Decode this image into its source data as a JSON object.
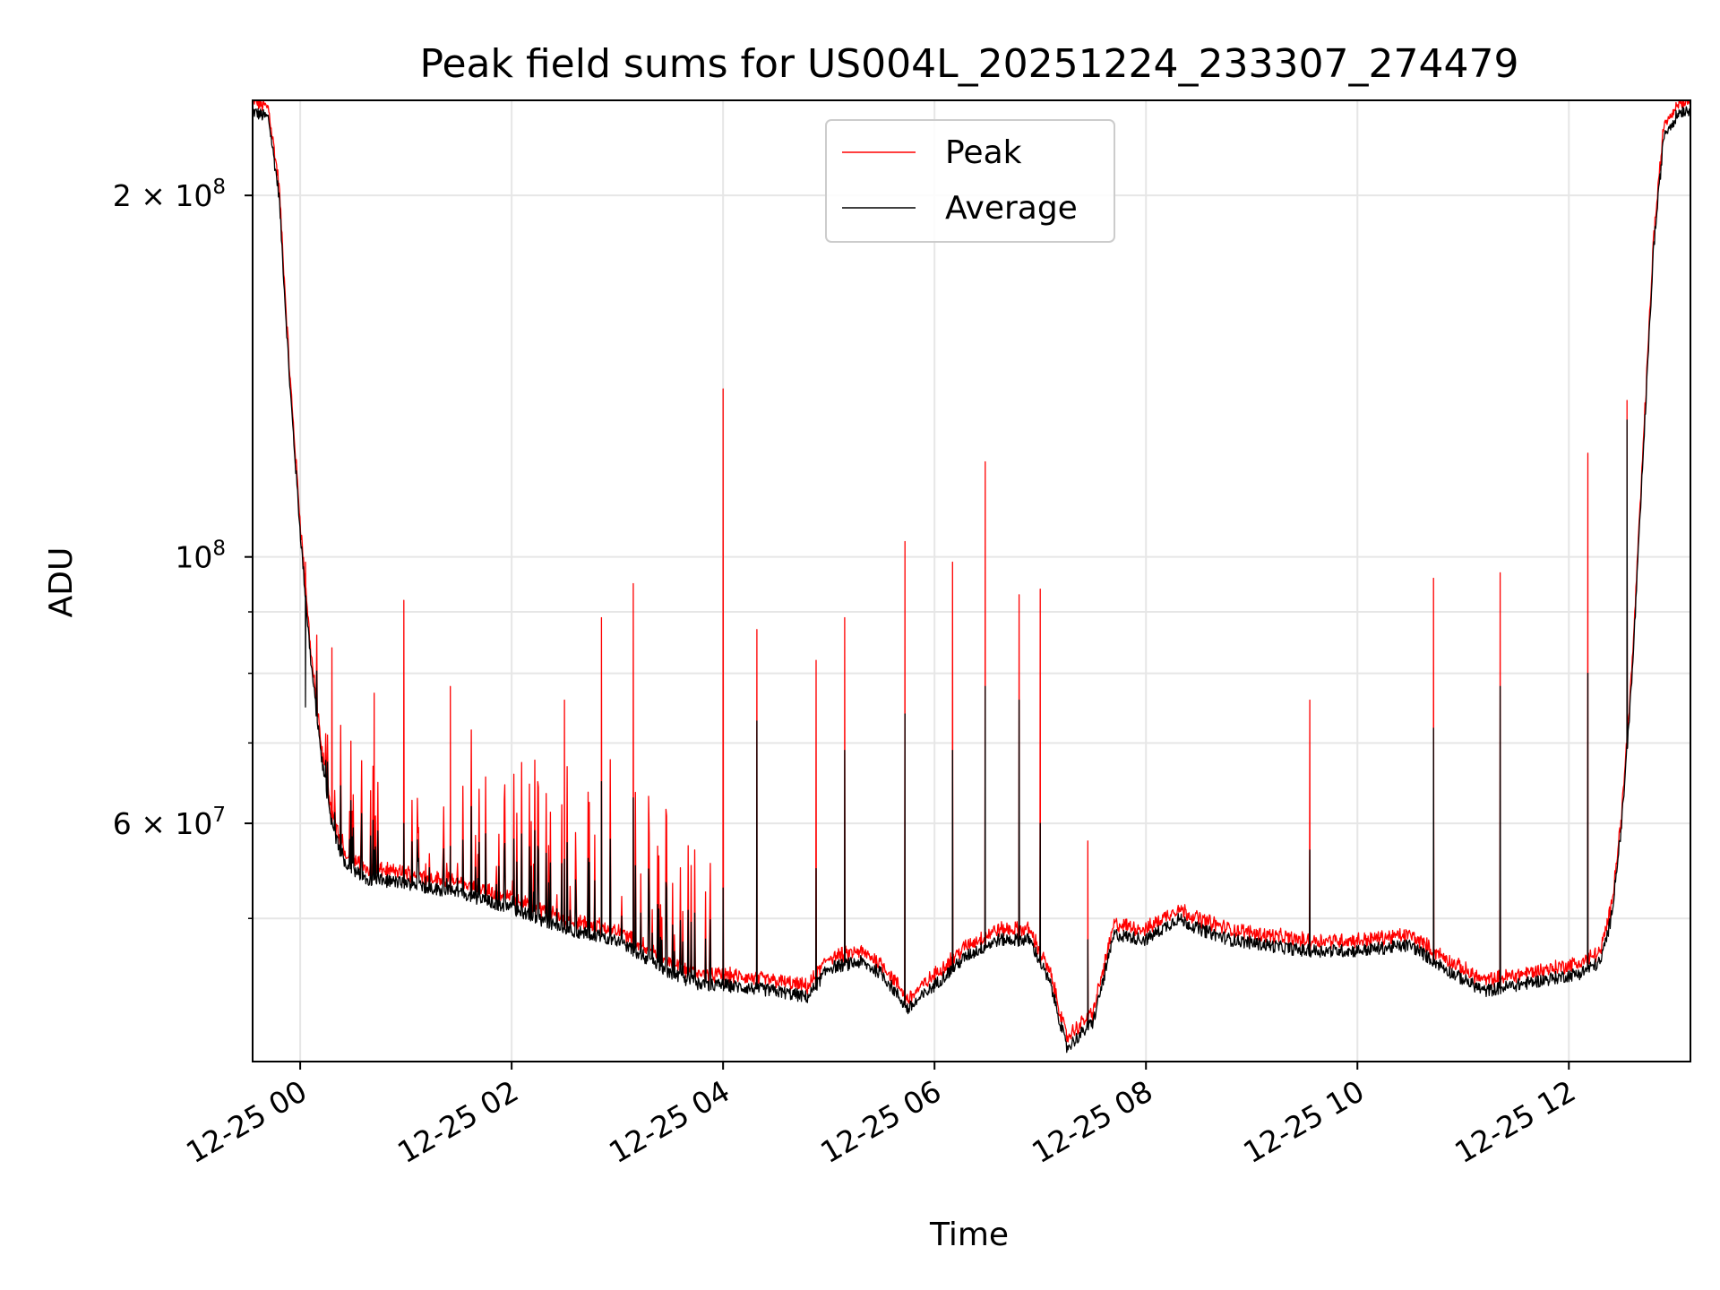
{
  "chart_data": {
    "type": "line",
    "title": "Peak field sums for US004L_20251224_233307_274479",
    "xlabel": "Time",
    "ylabel": "ADU",
    "y_scale": "log",
    "xlim_hours": [
      -0.45,
      13.15
    ],
    "ylim": [
      38000000,
      240000000
    ],
    "grid": true,
    "legend_position": "upper center",
    "x_ticks": [
      {
        "hour": 0,
        "label": "12-25 00"
      },
      {
        "hour": 2,
        "label": "12-25 02"
      },
      {
        "hour": 4,
        "label": "12-25 04"
      },
      {
        "hour": 6,
        "label": "12-25 06"
      },
      {
        "hour": 8,
        "label": "12-25 08"
      },
      {
        "hour": 10,
        "label": "12-25 10"
      },
      {
        "hour": 12,
        "label": "12-25 12"
      }
    ],
    "y_ticks": [
      {
        "value": 60000000,
        "base": "6 × 10",
        "exp": "7"
      },
      {
        "value": 100000000,
        "base": "10",
        "exp": "8"
      },
      {
        "value": 200000000,
        "base": "2 × 10",
        "exp": "8"
      }
    ],
    "y_minor_gridlines": [
      50000000,
      70000000,
      80000000,
      90000000
    ],
    "series": [
      {
        "name": "Peak",
        "color": "#ff0000"
      },
      {
        "name": "Average",
        "color": "#000000"
      }
    ],
    "baseline_average": [
      [
        -0.45,
        235000000
      ],
      [
        -0.3,
        232000000
      ],
      [
        -0.2,
        200000000
      ],
      [
        -0.1,
        140000000
      ],
      [
        0.0,
        105000000
      ],
      [
        0.1,
        82000000
      ],
      [
        0.2,
        68000000
      ],
      [
        0.3,
        60000000
      ],
      [
        0.4,
        56000000
      ],
      [
        0.6,
        54000000
      ],
      [
        1.0,
        53500000
      ],
      [
        1.5,
        52500000
      ],
      [
        2.0,
        51000000
      ],
      [
        2.5,
        49000000
      ],
      [
        3.0,
        48000000
      ],
      [
        3.5,
        45000000
      ],
      [
        3.8,
        44000000
      ],
      [
        4.0,
        44000000
      ],
      [
        4.5,
        43500000
      ],
      [
        4.8,
        43000000
      ],
      [
        5.0,
        45500000
      ],
      [
        5.3,
        46000000
      ],
      [
        5.5,
        45000000
      ],
      [
        5.75,
        42000000
      ],
      [
        6.0,
        44000000
      ],
      [
        6.3,
        46500000
      ],
      [
        6.6,
        48000000
      ],
      [
        6.9,
        48000000
      ],
      [
        7.1,
        44000000
      ],
      [
        7.25,
        39000000
      ],
      [
        7.5,
        41000000
      ],
      [
        7.7,
        48500000
      ],
      [
        8.0,
        48000000
      ],
      [
        8.3,
        50000000
      ],
      [
        8.5,
        49000000
      ],
      [
        8.8,
        48000000
      ],
      [
        9.5,
        47000000
      ],
      [
        10.0,
        47000000
      ],
      [
        10.5,
        47500000
      ],
      [
        10.9,
        45000000
      ],
      [
        11.2,
        43500000
      ],
      [
        11.5,
        44000000
      ],
      [
        11.8,
        44500000
      ],
      [
        12.1,
        45000000
      ],
      [
        12.3,
        46000000
      ],
      [
        12.4,
        50000000
      ],
      [
        12.5,
        60000000
      ],
      [
        12.6,
        80000000
      ],
      [
        12.7,
        120000000
      ],
      [
        12.8,
        180000000
      ],
      [
        12.9,
        225000000
      ],
      [
        13.05,
        235000000
      ],
      [
        13.15,
        236000000
      ]
    ],
    "noise_spikes_range_hours": [
      0.15,
      3.9
    ],
    "peak_spikes": [
      {
        "hour": 0.05,
        "peak": 99000000,
        "avg": 75000000
      },
      {
        "hour": 0.3,
        "peak": 84000000,
        "avg": 60000000
      },
      {
        "hour": 0.7,
        "peak": 77000000,
        "avg": 57000000
      },
      {
        "hour": 0.98,
        "peak": 92000000,
        "avg": 60000000
      },
      {
        "hour": 1.42,
        "peak": 78000000,
        "avg": 56000000
      },
      {
        "hour": 2.5,
        "peak": 76000000,
        "avg": 56000000
      },
      {
        "hour": 2.85,
        "peak": 89000000,
        "avg": 65000000
      },
      {
        "hour": 3.15,
        "peak": 95000000,
        "avg": 63000000
      },
      {
        "hour": 4.0,
        "peak": 138000000,
        "avg": 53000000
      },
      {
        "hour": 4.32,
        "peak": 87000000,
        "avg": 73000000
      },
      {
        "hour": 4.88,
        "peak": 82000000,
        "avg": 55000000
      },
      {
        "hour": 5.15,
        "peak": 89000000,
        "avg": 69000000
      },
      {
        "hour": 5.72,
        "peak": 103000000,
        "avg": 74000000
      },
      {
        "hour": 6.17,
        "peak": 99000000,
        "avg": 69000000
      },
      {
        "hour": 6.48,
        "peak": 120000000,
        "avg": 78000000
      },
      {
        "hour": 6.8,
        "peak": 93000000,
        "avg": 76000000
      },
      {
        "hour": 7.0,
        "peak": 94000000,
        "avg": 60000000
      },
      {
        "hour": 7.45,
        "peak": 58000000,
        "avg": 48000000
      },
      {
        "hour": 9.55,
        "peak": 76000000,
        "avg": 57000000
      },
      {
        "hour": 10.72,
        "peak": 96000000,
        "avg": 72000000
      },
      {
        "hour": 11.35,
        "peak": 97000000,
        "avg": 78000000
      },
      {
        "hour": 12.18,
        "peak": 122000000,
        "avg": 80000000
      },
      {
        "hour": 12.55,
        "peak": 135000000,
        "avg": 130000000
      }
    ]
  },
  "legend": {
    "peak_label": "Peak",
    "average_label": "Average"
  }
}
